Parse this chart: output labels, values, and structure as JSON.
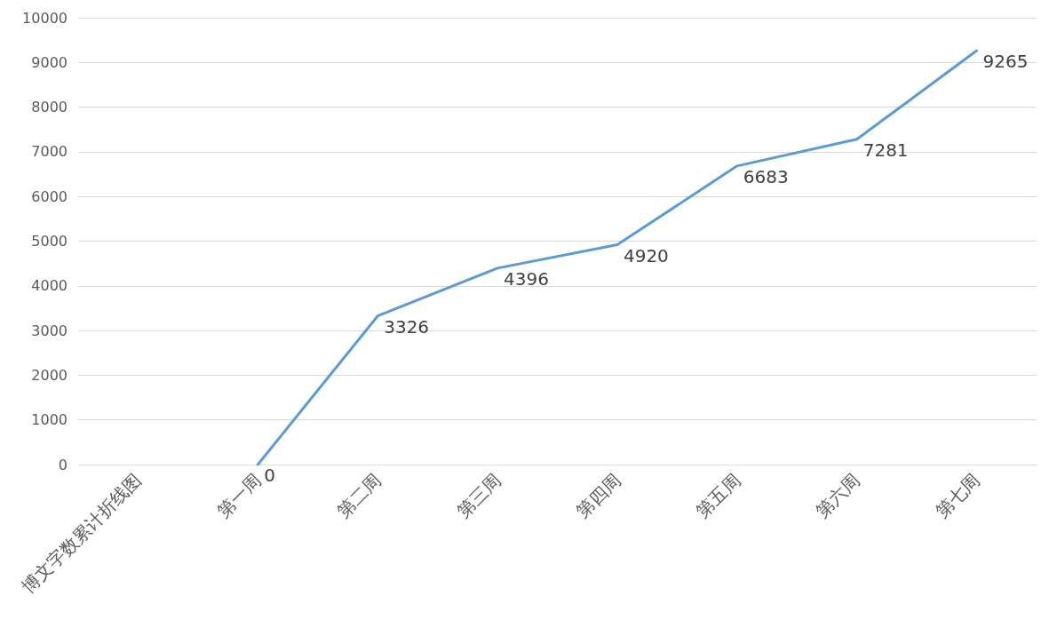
{
  "chart_data": {
    "type": "line",
    "categories": [
      "博文字数累计折线图",
      "第一周",
      "第二周",
      "第三周",
      "第四周",
      "第五周",
      "第六周",
      "第七周"
    ],
    "values": [
      null,
      0,
      3326,
      4396,
      4920,
      6683,
      7281,
      9265
    ],
    "color": "#5b9bd5",
    "ylim": [
      0,
      10000
    ],
    "yticks": [
      0,
      1000,
      2000,
      3000,
      4000,
      5000,
      6000,
      7000,
      8000,
      9000,
      10000
    ],
    "grid": "y",
    "data_labels": true,
    "marker": "none",
    "line_style": "solid"
  }
}
